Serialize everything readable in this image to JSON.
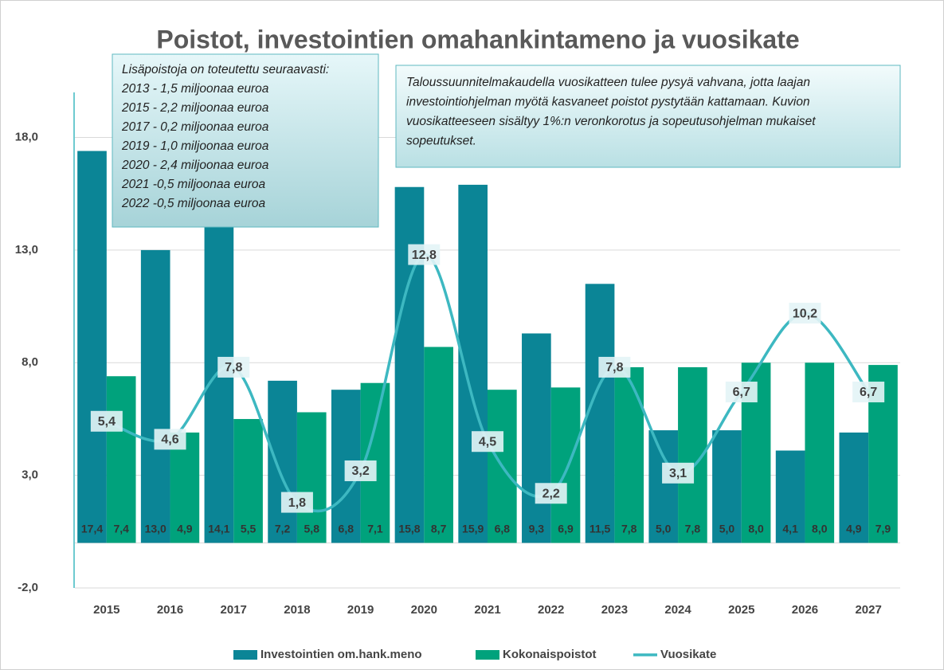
{
  "chart_data": {
    "type": "bar-line",
    "title": "Poistot, investointien omahankintameno ja vuosikate",
    "annotations": [
      [
        "Lisäpoistoja on toteutettu seuraavasti:",
        "2013 - 1,5 miljoonaa euroa",
        "2015 - 2,2 miljoonaa euroa",
        "2017 - 0,2 miljoonaa euroa",
        "2019 - 1,0 miljoonaa euroa",
        "2020 - 2,4 miljoonaa euroa",
        "2021 -0,5 miljoonaa euroa",
        "2022 -0,5 miljoonaa euroa"
      ],
      [
        "Taloussuunnitelmakaudella vuosikatteen tulee pysyä vahvana, jotta laajan",
        "investointiohjelman myötä kasvaneet poistot pystytään kattamaan.  Kuvion",
        "vuosikatteeseen sisältyy 1%:n veronkorotus ja sopeutusohjelman mukaiset",
        "sopeutukset."
      ]
    ],
    "categories": [
      "2015",
      "2016",
      "2017",
      "2018",
      "2019",
      "2020",
      "2021",
      "2022",
      "2023",
      "2024",
      "2025",
      "2026",
      "2027"
    ],
    "series": [
      {
        "name": "Investointien om.hank.meno",
        "type": "bar",
        "color": "#0b8596",
        "values": [
          17.4,
          13.0,
          14.1,
          7.2,
          6.8,
          15.8,
          15.9,
          9.3,
          11.5,
          5.0,
          5.0,
          4.1,
          4.9
        ],
        "value_labels": [
          "17,4",
          "13,0",
          "14,1",
          "7,2",
          "6,8",
          "15,8",
          "15,9",
          "9,3",
          "11,5",
          "5,0",
          "5,0",
          "4,1",
          "4,9"
        ]
      },
      {
        "name": "Kokonaispoistot",
        "type": "bar",
        "color": "#00a27c",
        "values": [
          7.4,
          4.9,
          5.5,
          5.8,
          7.1,
          8.7,
          6.8,
          6.9,
          7.8,
          7.8,
          8.0,
          8.0,
          7.9
        ],
        "value_labels": [
          "7,4",
          "4,9",
          "5,5",
          "5,8",
          "7,1",
          "8,7",
          "6,8",
          "6,9",
          "7,8",
          "7,8",
          "8,0",
          "8,0",
          "7,9"
        ]
      },
      {
        "name": "Vuosikate",
        "type": "line",
        "color": "#3db8c1",
        "values": [
          5.4,
          4.6,
          7.8,
          1.8,
          3.2,
          12.8,
          4.5,
          2.2,
          7.8,
          3.1,
          6.7,
          10.2,
          6.7
        ],
        "value_labels": [
          "5,4",
          "4,6",
          "7,8",
          "1,8",
          "3,2",
          "12,8",
          "4,5",
          "2,2",
          "7,8",
          "3,1",
          "6,7",
          "10,2",
          "6,7"
        ]
      }
    ],
    "ylim": [
      -2,
      20
    ],
    "yticks": [
      {
        "value": -2,
        "label": "-2,0"
      },
      {
        "value": 3,
        "label": "3,0"
      },
      {
        "value": 8,
        "label": "8,0"
      },
      {
        "value": 13,
        "label": "13,0"
      },
      {
        "value": 18,
        "label": "18,0"
      }
    ],
    "grid": true,
    "legend": "bottom"
  }
}
